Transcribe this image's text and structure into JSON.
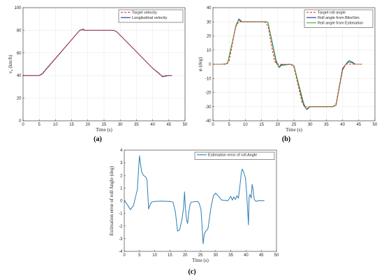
{
  "chart_data": [
    {
      "type": "line",
      "caption": "(a)",
      "xlabel": "Time (s)",
      "ylabel": "v_x (km/h)",
      "xlim": [
        0,
        50
      ],
      "ylim": [
        0,
        100
      ],
      "xticks": [
        0,
        5,
        10,
        15,
        20,
        25,
        30,
        35,
        40,
        45,
        50
      ],
      "yticks": [
        0,
        20,
        40,
        60,
        80,
        100
      ],
      "grid": true,
      "legend_position": "top-right",
      "series": [
        {
          "name": "Target velocity",
          "color": "#e8322e",
          "dashed": true,
          "x": [
            0,
            5,
            6,
            7,
            17.5,
            18.5,
            19,
            28,
            29,
            40,
            42,
            43,
            44,
            45,
            46
          ],
          "y": [
            40,
            40,
            42,
            45.5,
            80,
            81.5,
            80,
            80,
            78.5,
            46.5,
            41.5,
            39.5,
            40,
            40,
            40
          ]
        },
        {
          "name": "Longitudinal velocity",
          "color": "#1f2f8f",
          "dashed": false,
          "x": [
            0,
            5,
            6,
            7,
            17.5,
            18.5,
            19,
            28,
            29,
            40,
            42,
            43,
            44,
            45,
            46
          ],
          "y": [
            40,
            40,
            41.5,
            45,
            80,
            80.5,
            80,
            80,
            78.5,
            46.5,
            42,
            39,
            39.5,
            40,
            40
          ]
        }
      ]
    },
    {
      "type": "line",
      "caption": "(b)",
      "xlabel": "Time (s)",
      "ylabel": "φ (deg)",
      "xlim": [
        0,
        50
      ],
      "ylim": [
        -40,
        40
      ],
      "xticks": [
        0,
        5,
        10,
        15,
        20,
        25,
        30,
        35,
        40,
        45,
        50
      ],
      "yticks": [
        -40,
        -30,
        -20,
        -10,
        0,
        10,
        20,
        30,
        40
      ],
      "grid": true,
      "legend_position": "top-right",
      "series": [
        {
          "name": "Target roll angle",
          "color": "#e8322e",
          "dashed": true,
          "x": [
            0,
            4,
            5,
            7,
            8,
            9,
            16,
            17,
            19,
            20,
            21,
            24,
            25,
            27.5,
            28.5,
            29.5,
            37,
            38,
            40,
            41,
            42,
            43,
            46
          ],
          "y": [
            0,
            0,
            2,
            27,
            30,
            30,
            30,
            27,
            2,
            0,
            0,
            0,
            -2,
            -27,
            -30,
            -30,
            -30,
            -28,
            -3,
            0,
            0,
            0,
            0
          ]
        },
        {
          "name": "Roll angle from BikeSim",
          "color": "#1f2f8f",
          "dashed": false,
          "x": [
            0,
            3,
            4.5,
            7.2,
            8,
            9,
            16.5,
            17,
            19.5,
            20.3,
            21,
            24,
            25,
            28,
            29,
            30,
            37,
            38,
            40,
            41,
            42,
            43,
            44,
            46
          ],
          "y": [
            0,
            0,
            0.5,
            28,
            32,
            30,
            30,
            29.5,
            2.5,
            -2,
            -0.5,
            0,
            -1,
            -29,
            -32,
            -30,
            -30,
            -29,
            -4,
            0,
            2.5,
            1.5,
            0,
            0
          ]
        },
        {
          "name": "Roll angle from Estimation",
          "color": "#46a832",
          "dashed": false,
          "x": [
            0,
            3,
            4.5,
            7,
            7.8,
            9,
            16.5,
            17,
            19.5,
            20.5,
            21,
            24,
            25,
            28,
            28.8,
            30,
            37,
            38,
            40,
            41,
            42,
            43,
            44,
            46
          ],
          "y": [
            0,
            0,
            0.5,
            26,
            31,
            30,
            30,
            29.5,
            1,
            -2.5,
            -1,
            0,
            -1,
            -27.5,
            -31.5,
            -30,
            -30,
            -29,
            -3,
            0,
            1.5,
            1,
            0,
            0
          ]
        }
      ]
    },
    {
      "type": "line",
      "caption": "(c)",
      "xlabel": "Time (s)",
      "ylabel": "Estimation error of roll Angle (deg)",
      "xlim": [
        0,
        50
      ],
      "ylim": [
        -4,
        4
      ],
      "xticks": [
        0,
        5,
        10,
        15,
        20,
        25,
        30,
        35,
        40,
        45,
        50
      ],
      "yticks": [
        -4,
        -3,
        -2,
        -1,
        0,
        1,
        2,
        3,
        4
      ],
      "grid": false,
      "legend_position": "top-right",
      "series": [
        {
          "name": "Estimation error of roll Angle",
          "color": "#2d7db3",
          "dashed": false,
          "x": [
            0,
            1,
            2,
            3,
            3.7,
            4.3,
            4.7,
            5,
            5.3,
            5.7,
            6.3,
            7,
            7.5,
            8,
            8.5,
            9,
            10,
            12,
            15,
            16,
            16.8,
            17.5,
            18.2,
            19,
            19.5,
            19.8,
            20.1,
            20.4,
            20.8,
            21.2,
            21.6,
            22,
            24,
            24.6,
            25.2,
            25.6,
            25.9,
            26.3,
            26.8,
            27.5,
            28.5,
            29.3,
            30,
            31,
            32,
            34,
            35,
            35.5,
            36,
            36.5,
            37,
            37.5,
            38,
            38.5,
            38.8,
            39.3,
            39.8,
            40.2,
            40.5,
            40.8,
            41,
            41.3,
            41.7,
            42,
            42.3,
            42.7,
            43.3,
            44,
            46
          ],
          "y": [
            0,
            -0.3,
            -0.7,
            -0.4,
            0.3,
            0.9,
            2.5,
            3.55,
            3.0,
            2.3,
            2.0,
            1.9,
            1.6,
            -0.65,
            -0.3,
            -0.1,
            -0.05,
            -0.03,
            -0.05,
            -0.1,
            -0.9,
            -2.4,
            -2.3,
            -1.4,
            -0.5,
            0.7,
            -0.6,
            -1.4,
            -1.8,
            -0.9,
            -0.3,
            -0.1,
            -0.05,
            -0.2,
            -0.7,
            -2.2,
            -3.4,
            -2.6,
            -2.4,
            -2.2,
            -0.5,
            0.4,
            0.6,
            0.35,
            0.05,
            0,
            0.35,
            0.05,
            0.3,
            0.1,
            0.4,
            0.2,
            1.2,
            2.3,
            2.5,
            2.2,
            1.8,
            0.6,
            -0.6,
            -1.9,
            0.3,
            0.5,
            0.2,
            1.3,
            0.9,
            0.1,
            -0.05,
            0,
            0
          ]
        }
      ]
    }
  ]
}
